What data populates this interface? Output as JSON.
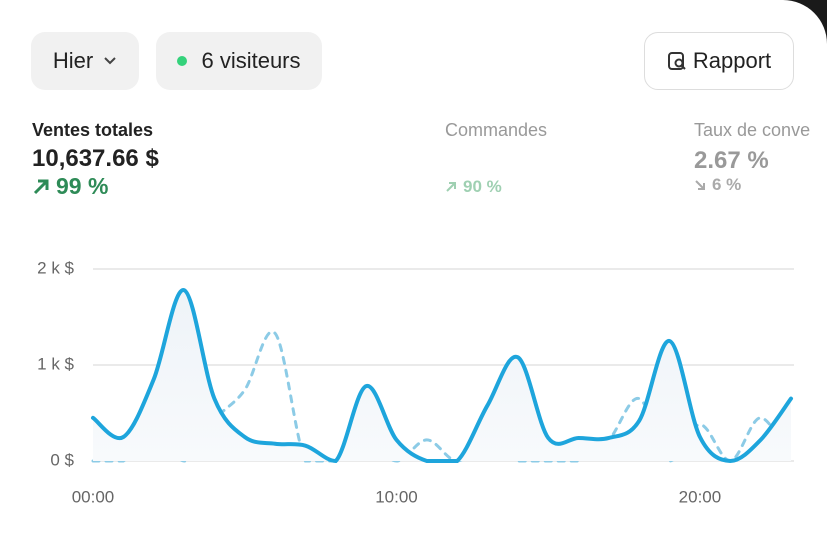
{
  "header": {
    "period": "Hier",
    "visitors": "6 visiteurs",
    "report": "Rapport"
  },
  "metrics": [
    {
      "label": "Ventes totales",
      "value": "10,637.66 $",
      "change": "99 %"
    },
    {
      "label": "Commandes",
      "change": "90 %"
    },
    {
      "label": "Taux de conve",
      "value": "2.67 %",
      "change": "6 %"
    }
  ],
  "chart_data": {
    "type": "line",
    "x": [
      0,
      1,
      2,
      3,
      4,
      5,
      6,
      7,
      8,
      9,
      10,
      11,
      12,
      13,
      14,
      15,
      16,
      17,
      18,
      19,
      20,
      21,
      22,
      23
    ],
    "xlim": [
      0,
      23
    ],
    "xticks": [
      {
        "value": 0,
        "label": "00:00"
      },
      {
        "value": 10,
        "label": "10:00"
      },
      {
        "value": 20,
        "label": "20:00"
      }
    ],
    "ylim": [
      0,
      2000
    ],
    "yticks": [
      {
        "value": 0,
        "label": "0 $"
      },
      {
        "value": 1000,
        "label": "1 k $"
      },
      {
        "value": 2000,
        "label": "2 k $"
      }
    ],
    "grid": true,
    "series": [
      {
        "color": "#1ea5dc",
        "dashed": false,
        "area": true,
        "values": [
          450,
          250,
          850,
          1780,
          650,
          250,
          180,
          160,
          0,
          780,
          220,
          0,
          0,
          580,
          1080,
          240,
          240,
          240,
          420,
          1250,
          250,
          0,
          220,
          650
        ]
      },
      {
        "color": "#8ccbe6",
        "dashed": true,
        "area": false,
        "values": [
          0,
          0,
          430,
          0,
          430,
          740,
          1330,
          0,
          0,
          220,
          0,
          220,
          0,
          220,
          0,
          0,
          0,
          220,
          650,
          0,
          380,
          0,
          450,
          0
        ]
      }
    ]
  }
}
